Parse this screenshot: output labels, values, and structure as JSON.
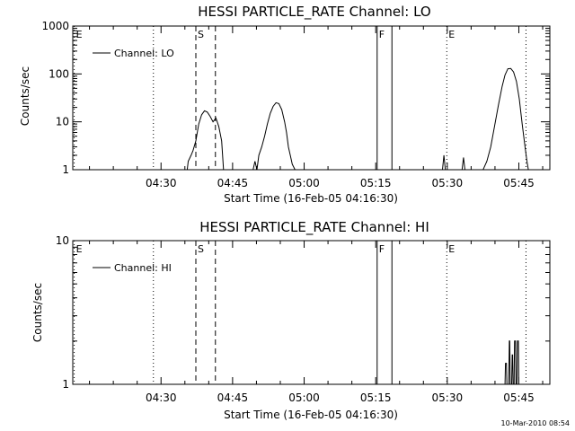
{
  "colors": {
    "background": "#ffffff",
    "foreground": "#000000"
  },
  "timestamp": "10-Mar-2010 08:54",
  "chart_data": [
    {
      "type": "line",
      "title": "HESSI PARTICLE_RATE Channel: LO",
      "xlabel": "Start Time (16-Feb-05 04:16:30)",
      "ylabel": "Counts/sec",
      "yscale": "log",
      "ylim": [
        1,
        1000
      ],
      "xlim_minutes": [
        0,
        100
      ],
      "x_ticks": [
        {
          "t": 18.5,
          "label": "04:30"
        },
        {
          "t": 33.5,
          "label": "04:45"
        },
        {
          "t": 48.5,
          "label": "05:00"
        },
        {
          "t": 63.5,
          "label": "05:15"
        },
        {
          "t": 78.5,
          "label": "05:30"
        },
        {
          "t": 93.5,
          "label": "05:45"
        }
      ],
      "y_ticks": [
        {
          "v": 1,
          "label": "1"
        },
        {
          "v": 10,
          "label": "10"
        },
        {
          "v": 100,
          "label": "100"
        },
        {
          "v": 1000,
          "label": "1000"
        }
      ],
      "legend": "Channel: LO",
      "legend_position": "top-left",
      "markers": [
        {
          "t": 0.3,
          "label": "E",
          "style": "dotted"
        },
        {
          "t": 16.9,
          "label": "",
          "style": "dotted"
        },
        {
          "t": 25.8,
          "label": "S",
          "style": "dashed"
        },
        {
          "t": 29.9,
          "label": "",
          "style": "dashed"
        },
        {
          "t": 63.8,
          "label": "F",
          "style": "solid"
        },
        {
          "t": 66.9,
          "label": "",
          "style": "solid"
        },
        {
          "t": 78.4,
          "label": "E",
          "style": "dotted"
        },
        {
          "t": 95.0,
          "label": "",
          "style": "dotted"
        }
      ],
      "series": [
        {
          "x": [
            22.5,
            24.0,
            24.2,
            24.8,
            25.2,
            25.8,
            26.4,
            27.0,
            27.6,
            28.2,
            28.8,
            29.4,
            30.0,
            30.6,
            31.2,
            31.6,
            37.8,
            38.2,
            38.6,
            39.0,
            39.6,
            40.2,
            40.8,
            41.4,
            42.0,
            42.6,
            43.2,
            43.8,
            44.4,
            44.8,
            45.2,
            45.6,
            46.0,
            46.6,
            77.5,
            77.8,
            78.1,
            81.6,
            81.9,
            82.2,
            86.0,
            86.8,
            87.6,
            88.4,
            89.2,
            90.0,
            90.6,
            91.2,
            91.8,
            92.4,
            93.0,
            93.6,
            94.2,
            94.8,
            95.2,
            95.5
          ],
          "y": [
            1,
            1,
            1.5,
            2,
            2.5,
            4,
            9,
            14,
            17,
            16,
            13,
            10,
            12,
            8,
            4,
            1,
            1,
            1.5,
            1,
            2,
            3,
            5,
            9,
            15,
            21,
            25,
            24,
            18,
            10,
            6,
            3,
            2,
            1.3,
            1,
            1,
            2,
            1,
            1,
            1.8,
            1,
            1,
            1.5,
            3,
            8,
            22,
            55,
            95,
            128,
            130,
            110,
            70,
            30,
            9,
            3,
            1.5,
            1
          ]
        }
      ]
    },
    {
      "type": "line",
      "title": "HESSI PARTICLE_RATE Channel: HI",
      "xlabel": "Start Time (16-Feb-05 04:16:30)",
      "ylabel": "Counts/sec",
      "yscale": "log",
      "ylim": [
        1,
        10
      ],
      "xlim_minutes": [
        0,
        100
      ],
      "x_ticks": [
        {
          "t": 18.5,
          "label": "04:30"
        },
        {
          "t": 33.5,
          "label": "04:45"
        },
        {
          "t": 48.5,
          "label": "05:00"
        },
        {
          "t": 63.5,
          "label": "05:15"
        },
        {
          "t": 78.5,
          "label": "05:30"
        },
        {
          "t": 93.5,
          "label": "05:45"
        }
      ],
      "y_ticks": [
        {
          "v": 1,
          "label": "1"
        },
        {
          "v": 10,
          "label": "10"
        }
      ],
      "legend": "Channel: HI",
      "legend_position": "top-left",
      "markers": [
        {
          "t": 0.3,
          "label": "E",
          "style": "dotted"
        },
        {
          "t": 16.9,
          "label": "",
          "style": "dotted"
        },
        {
          "t": 25.8,
          "label": "S",
          "style": "dashed"
        },
        {
          "t": 29.9,
          "label": "",
          "style": "dashed"
        },
        {
          "t": 63.8,
          "label": "F",
          "style": "solid"
        },
        {
          "t": 66.9,
          "label": "",
          "style": "solid"
        },
        {
          "t": 78.4,
          "label": "E",
          "style": "dotted"
        },
        {
          "t": 95.0,
          "label": "",
          "style": "dotted"
        }
      ],
      "series": [
        {
          "x": [
            90.6,
            90.7,
            90.9,
            91.0,
            91.4,
            91.5,
            91.6,
            91.7,
            92.0,
            92.1,
            92.2,
            92.3,
            92.5,
            92.6,
            92.8,
            92.9,
            93.1,
            93.2,
            93.4,
            93.5
          ],
          "y": [
            1,
            1.4,
            1.4,
            1,
            1,
            2,
            2,
            1,
            1,
            1.6,
            1.6,
            1,
            1,
            2,
            2,
            1,
            1,
            2,
            2,
            1
          ]
        }
      ]
    }
  ]
}
